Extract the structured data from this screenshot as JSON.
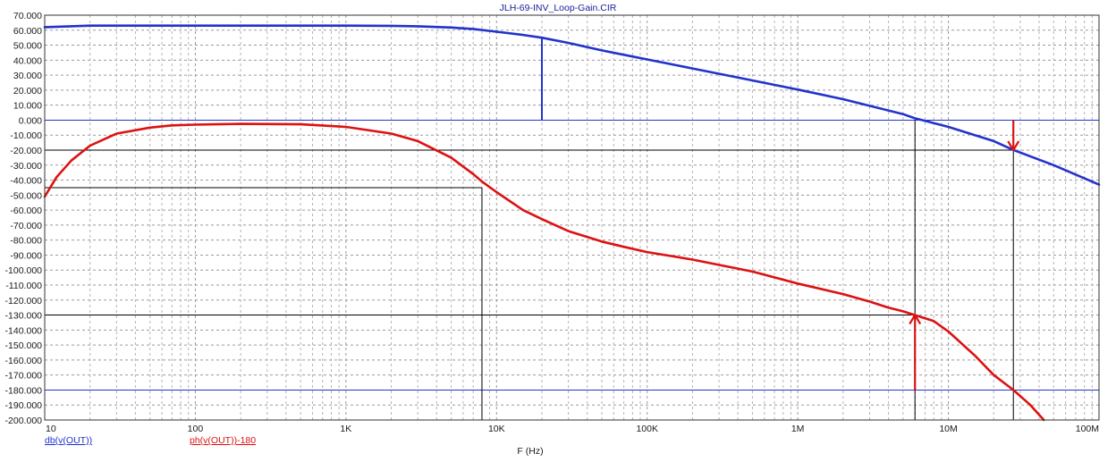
{
  "chart_data": {
    "type": "line",
    "title": "JLH-69-INV_Loop-Gain.CIR",
    "xlabel": "F (Hz)",
    "ylabel": "",
    "x_scale": "log",
    "xlim": [
      10,
      100000000
    ],
    "ylim": [
      -200,
      70
    ],
    "grid": true,
    "x_tick_labels": [
      "10",
      "100",
      "1K",
      "10K",
      "100K",
      "1M",
      "10M",
      "100M"
    ],
    "x_tick_values": [
      10,
      100,
      1000,
      10000,
      100000,
      1000000,
      10000000,
      100000000
    ],
    "y_tick_labels": [
      "70.000",
      "60.000",
      "50.000",
      "40.000",
      "30.000",
      "20.000",
      "10.000",
      "0.000",
      "-10.000",
      "-20.000",
      "-30.000",
      "-40.000",
      "-50.000",
      "-60.000",
      "-70.000",
      "-80.000",
      "-90.000",
      "-100.000",
      "-110.000",
      "-120.000",
      "-130.000",
      "-140.000",
      "-150.000",
      "-160.000",
      "-170.000",
      "-180.000",
      "-190.000",
      "-200.000"
    ],
    "y_tick_values": [
      70,
      60,
      50,
      40,
      30,
      20,
      10,
      0,
      -10,
      -20,
      -30,
      -40,
      -50,
      -60,
      -70,
      -80,
      -90,
      -100,
      -110,
      -120,
      -130,
      -140,
      -150,
      -160,
      -170,
      -180,
      -190,
      -200
    ],
    "series": [
      {
        "name": "db(v(OUT))",
        "color": "#2233cc",
        "x": [
          10,
          20,
          50,
          100,
          200,
          500,
          1000,
          2000,
          3000,
          5000,
          7000,
          10000,
          15000,
          20000,
          30000,
          50000,
          70000,
          100000,
          200000,
          500000,
          1000000,
          2000000,
          5000000,
          6000000,
          7000000,
          10000000,
          20000000,
          27000000,
          50000000,
          100000000
        ],
        "values": [
          62,
          63,
          63,
          63,
          63,
          63,
          63,
          62.9,
          62.6,
          61.8,
          60.8,
          59,
          56.8,
          55,
          51.5,
          46.5,
          43.6,
          40.5,
          34.5,
          26.5,
          20.4,
          14,
          4,
          1.2,
          -0.5,
          -4.5,
          -14,
          -19.9,
          -30,
          -43
        ]
      },
      {
        "name": "ph(v(OUT))-180",
        "color": "#dd1111",
        "x": [
          10,
          12,
          15,
          20,
          30,
          50,
          70,
          100,
          200,
          500,
          1000,
          2000,
          3000,
          5000,
          7000,
          8000,
          10000,
          15000,
          20000,
          30000,
          50000,
          70000,
          100000,
          200000,
          500000,
          1000000,
          2000000,
          3000000,
          4000000,
          5000000,
          6000000,
          8000000,
          10000000,
          15000000,
          20000000,
          27000000,
          35000000,
          43000000
        ],
        "values": [
          -51,
          -38,
          -27,
          -17,
          -9,
          -5,
          -3.5,
          -3,
          -2.5,
          -2.8,
          -4.5,
          -9,
          -14,
          -25,
          -36,
          -41,
          -48,
          -60,
          -66,
          -74,
          -81,
          -84.5,
          -88,
          -93,
          -101,
          -109,
          -116,
          -121,
          -125,
          -127.5,
          -130,
          -134,
          -141,
          -157,
          -170,
          -180,
          -190,
          -200
        ]
      }
    ],
    "annotations": {
      "markers": [
        {
          "x": 20000,
          "y_from": 0,
          "y_to": 55,
          "color": "#2233cc"
        },
        {
          "x": 27000000,
          "y_from": -20,
          "color": "#dd1111",
          "direction": "down"
        },
        {
          "x": 6000000,
          "y_from": -180,
          "y_to": -130,
          "color": "#dd1111",
          "direction": "up"
        }
      ],
      "reference_lines": [
        {
          "y": 0,
          "x_to": 100000000,
          "color": "#2233cc"
        },
        {
          "y": -180,
          "x_to": 100000000,
          "color": "#2233cc"
        },
        {
          "y": -20,
          "x_to": 27000000,
          "color": "#000000"
        },
        {
          "y": -45,
          "x_to": 8000,
          "color": "#000000"
        },
        {
          "y": -130,
          "x_to": 6000000,
          "color": "#000000"
        },
        {
          "x": 8000,
          "y_from": -200,
          "y_to": -45,
          "color": "#000000"
        },
        {
          "x": 6000000,
          "y_from": -200,
          "y_to": 0,
          "color": "#000000"
        },
        {
          "x": 27000000,
          "y_from": -200,
          "y_to": -20,
          "color": "#000000"
        }
      ]
    }
  }
}
